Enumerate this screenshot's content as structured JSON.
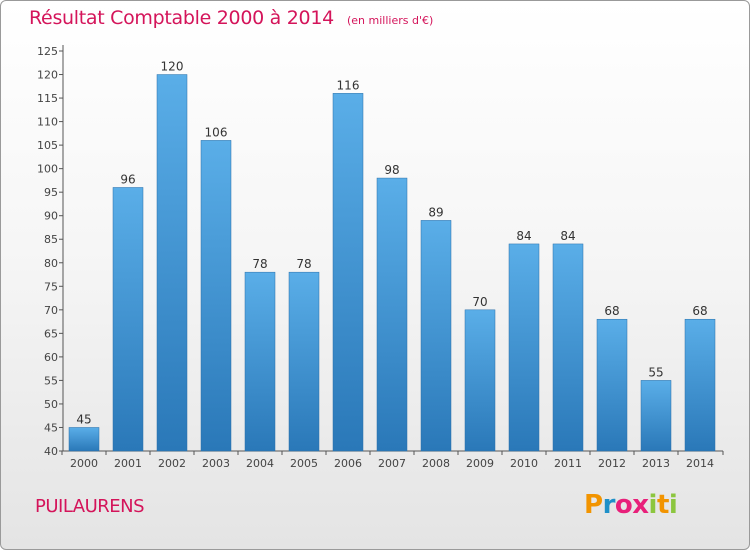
{
  "chart_data": {
    "type": "bar",
    "title": "Résultat Comptable 2000 à 2014",
    "subtitle": "(en milliers d'€)",
    "categories": [
      "2000",
      "2001",
      "2002",
      "2003",
      "2004",
      "2005",
      "2006",
      "2007",
      "2008",
      "2009",
      "2010",
      "2011",
      "2012",
      "2013",
      "2014"
    ],
    "values": [
      45,
      96,
      120,
      106,
      78,
      78,
      116,
      98,
      89,
      70,
      84,
      84,
      68,
      55,
      68
    ],
    "ylim": [
      40,
      125
    ],
    "yticks": [
      40,
      45,
      50,
      55,
      60,
      65,
      70,
      75,
      80,
      85,
      90,
      95,
      100,
      105,
      110,
      115,
      120,
      125
    ],
    "xlabel": "",
    "ylabel": "",
    "grid": false,
    "bar_color_top": "#5aaee8",
    "bar_color_bottom": "#2a78b8"
  },
  "commune": "PUILAURENS",
  "logo": {
    "letters": [
      "P",
      "r",
      "o",
      "x",
      "i",
      "t",
      "i"
    ],
    "colors": [
      "#f29400",
      "#1e90c8",
      "#e8207a",
      "#e8207a",
      "#8cc63f",
      "#f29400",
      "#8cc63f"
    ]
  },
  "accent_color": "#d4145a"
}
